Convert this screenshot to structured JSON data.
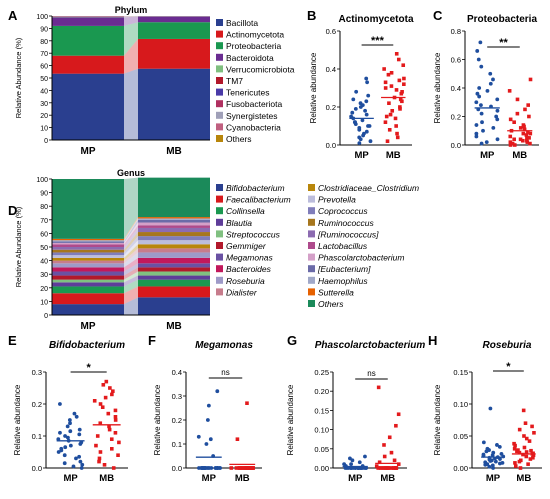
{
  "colors": {
    "mp": "#1f4e9e",
    "mb": "#e31a1c"
  },
  "chart_data": [
    {
      "panel": "A",
      "type": "stacked-bar",
      "title": "Phylum",
      "ylabel": "Relative Abundance (%)",
      "ylim": [
        0,
        100
      ],
      "yticks": [
        0,
        10,
        20,
        30,
        40,
        50,
        60,
        70,
        80,
        90,
        100
      ],
      "categories": [
        "MP",
        "MB"
      ],
      "series": [
        {
          "name": "Bacillota",
          "color": "#2a3f8f",
          "values": [
            53.5,
            57.5
          ]
        },
        {
          "name": "Actinomycetota",
          "color": "#d7191c",
          "values": [
            14.5,
            24.0
          ]
        },
        {
          "name": "Proteobacteria",
          "color": "#1a9850",
          "values": [
            24.0,
            13.5
          ]
        },
        {
          "name": "Bacteroidota",
          "color": "#6a2c91",
          "values": [
            7.0,
            4.5
          ]
        },
        {
          "name": "Verrucomicrobiota",
          "color": "#7fbf7f",
          "values": [
            0.3,
            0.2
          ]
        },
        {
          "name": "TM7",
          "color": "#b2182b",
          "values": [
            0.2,
            0.1
          ]
        },
        {
          "name": "Tenericutes",
          "color": "#4a3aa8",
          "values": [
            0.2,
            0.1
          ]
        },
        {
          "name": "Fusobacteriota",
          "color": "#b03060",
          "values": [
            0.1,
            0.05
          ]
        },
        {
          "name": "Synergistetes",
          "color": "#a0a0b8",
          "values": [
            0.1,
            0.05
          ]
        },
        {
          "name": "Cyanobacteria",
          "color": "#c06080",
          "values": [
            0.05,
            0.0
          ]
        },
        {
          "name": "Others",
          "color": "#b8860b",
          "values": [
            0.05,
            0.0
          ]
        }
      ]
    },
    {
      "panel": "B",
      "type": "scatter",
      "title": "Actinomycetota",
      "ylabel": "Relative abundance",
      "ylim": [
        0,
        0.6
      ],
      "yticks": [
        0.0,
        0.2,
        0.4,
        0.6
      ],
      "yticklabels": [
        "0.0",
        "0.2",
        "0.4",
        "0.6"
      ],
      "categories": [
        "MP",
        "MB"
      ],
      "significance": "***",
      "series": [
        {
          "name": "MP",
          "mean": 0.14,
          "values": [
            0.01,
            0.02,
            0.03,
            0.04,
            0.05,
            0.06,
            0.07,
            0.08,
            0.09,
            0.1,
            0.1,
            0.11,
            0.12,
            0.12,
            0.13,
            0.14,
            0.15,
            0.16,
            0.17,
            0.18,
            0.19,
            0.2,
            0.21,
            0.22,
            0.23,
            0.24,
            0.26,
            0.28,
            0.33,
            0.35
          ]
        },
        {
          "name": "MB",
          "mean": 0.25,
          "values": [
            0.02,
            0.04,
            0.06,
            0.08,
            0.1,
            0.12,
            0.14,
            0.15,
            0.16,
            0.18,
            0.19,
            0.2,
            0.22,
            0.23,
            0.24,
            0.25,
            0.27,
            0.28,
            0.29,
            0.3,
            0.31,
            0.32,
            0.33,
            0.34,
            0.35,
            0.37,
            0.38,
            0.4,
            0.42,
            0.45,
            0.48
          ]
        }
      ]
    },
    {
      "panel": "C",
      "type": "scatter",
      "title": "Proteobacteria",
      "ylabel": "Relative abundance",
      "ylim": [
        0,
        0.8
      ],
      "yticks": [
        0.0,
        0.2,
        0.4,
        0.6,
        0.8
      ],
      "yticklabels": [
        "0.0",
        "0.2",
        "0.4",
        "0.6",
        "0.8"
      ],
      "categories": [
        "MP",
        "MB"
      ],
      "significance": "**",
      "series": [
        {
          "name": "MP",
          "mean": 0.26,
          "values": [
            0.01,
            0.02,
            0.04,
            0.06,
            0.08,
            0.1,
            0.12,
            0.14,
            0.16,
            0.18,
            0.2,
            0.22,
            0.24,
            0.25,
            0.27,
            0.28,
            0.3,
            0.32,
            0.34,
            0.36,
            0.38,
            0.4,
            0.43,
            0.46,
            0.5,
            0.55,
            0.6,
            0.66,
            0.72
          ]
        },
        {
          "name": "MB",
          "mean": 0.1,
          "values": [
            0.0,
            0.0,
            0.01,
            0.01,
            0.02,
            0.02,
            0.03,
            0.03,
            0.04,
            0.04,
            0.05,
            0.05,
            0.06,
            0.07,
            0.08,
            0.08,
            0.09,
            0.1,
            0.11,
            0.12,
            0.13,
            0.14,
            0.16,
            0.18,
            0.2,
            0.22,
            0.25,
            0.28,
            0.32,
            0.38,
            0.46
          ]
        }
      ]
    },
    {
      "panel": "D",
      "type": "stacked-bar",
      "title": "Genus",
      "ylabel": "Relative Abundance (%)",
      "ylim": [
        0,
        100
      ],
      "yticks": [
        0,
        10,
        20,
        30,
        40,
        50,
        60,
        70,
        80,
        90,
        100
      ],
      "categories": [
        "MP",
        "MB"
      ],
      "series": [
        {
          "name": "Bifidobacterium",
          "color": "#2a3f8f",
          "values": [
            8,
            13
          ]
        },
        {
          "name": "Faecalibacterium",
          "color": "#d7191c",
          "values": [
            8,
            8
          ]
        },
        {
          "name": "Collinsella",
          "color": "#1a9850",
          "values": [
            5,
            5
          ]
        },
        {
          "name": "Blautia",
          "color": "#5e3c99",
          "values": [
            3,
            3
          ]
        },
        {
          "name": "Streptococcus",
          "color": "#80c080",
          "values": [
            2,
            3
          ]
        },
        {
          "name": "Gemmiger",
          "color": "#b2182b",
          "values": [
            3,
            3
          ]
        },
        {
          "name": "Megamonas",
          "color": "#6a51a3",
          "values": [
            3,
            3
          ]
        },
        {
          "name": "Bacteroides",
          "color": "#c2185b",
          "values": [
            3,
            4
          ]
        },
        {
          "name": "Roseburia",
          "color": "#9e9ac8",
          "values": [
            3,
            4
          ]
        },
        {
          "name": "Dialister",
          "color": "#c77c8c",
          "values": [
            2,
            3
          ]
        },
        {
          "name": "Clostridiaceae_Clostridium",
          "color": "#b8860b",
          "values": [
            2,
            3
          ]
        },
        {
          "name": "Prevotella",
          "color": "#bcbddc",
          "values": [
            2,
            3
          ]
        },
        {
          "name": "Coprococcus",
          "color": "#807dba",
          "values": [
            2,
            3
          ]
        },
        {
          "name": "Ruminococcus",
          "color": "#a6761d",
          "values": [
            2,
            3
          ]
        },
        {
          "name": "[Ruminococcus]",
          "color": "#8c6bb1",
          "values": [
            2,
            3
          ]
        },
        {
          "name": "Lactobacillus",
          "color": "#ae4a8c",
          "values": [
            2,
            2
          ]
        },
        {
          "name": "Phascolarctobacterium",
          "color": "#d4a0c8",
          "values": [
            1,
            2
          ]
        },
        {
          "name": "[Eubacterium]",
          "color": "#6b6ba8",
          "values": [
            1,
            2
          ]
        },
        {
          "name": "Haemophilus",
          "color": "#a0a8c8",
          "values": [
            1,
            1
          ]
        },
        {
          "name": "Sutterella",
          "color": "#e66101",
          "values": [
            1,
            1
          ]
        },
        {
          "name": "Others",
          "color": "#1b8a5a",
          "values": [
            44,
            29
          ]
        }
      ]
    },
    {
      "panel": "E",
      "type": "scatter",
      "title": "Bifidobacterium",
      "ylabel": "Relative abundance",
      "ylim": [
        0,
        0.3
      ],
      "yticks": [
        0.0,
        0.1,
        0.2,
        0.3
      ],
      "yticklabels": [
        "0.0",
        "0.1",
        "0.2",
        "0.3"
      ],
      "categories": [
        "MP",
        "MB"
      ],
      "significance": "*",
      "series": [
        {
          "name": "MP",
          "mean": 0.085,
          "values": [
            0.0,
            0.005,
            0.01,
            0.015,
            0.02,
            0.03,
            0.035,
            0.04,
            0.05,
            0.055,
            0.06,
            0.065,
            0.07,
            0.075,
            0.08,
            0.085,
            0.09,
            0.095,
            0.1,
            0.105,
            0.11,
            0.115,
            0.12,
            0.13,
            0.14,
            0.15,
            0.16,
            0.17,
            0.2
          ]
        },
        {
          "name": "MB",
          "mean": 0.135,
          "values": [
            0.0,
            0.01,
            0.02,
            0.03,
            0.04,
            0.05,
            0.06,
            0.07,
            0.08,
            0.09,
            0.1,
            0.11,
            0.12,
            0.13,
            0.14,
            0.15,
            0.16,
            0.17,
            0.18,
            0.19,
            0.2,
            0.21,
            0.22,
            0.23,
            0.24,
            0.25,
            0.26,
            0.27
          ]
        }
      ]
    },
    {
      "panel": "F",
      "type": "scatter",
      "title": "Megamonas",
      "ylabel": "Relative abundance",
      "ylim": [
        0,
        0.4
      ],
      "yticks": [
        0.0,
        0.1,
        0.2,
        0.3,
        0.4
      ],
      "yticklabels": [
        "0.0",
        "0.1",
        "0.2",
        "0.3",
        "0.4"
      ],
      "categories": [
        "MP",
        "MB"
      ],
      "significance": "ns",
      "series": [
        {
          "name": "MP",
          "mean": 0.045,
          "values": [
            0.0,
            0.0,
            0.0,
            0.0,
            0.0,
            0.0,
            0.0,
            0.0,
            0.0,
            0.0,
            0.0,
            0.0,
            0.0,
            0.0,
            0.0,
            0.0,
            0.0,
            0.0,
            0.0,
            0.0,
            0.0,
            0.0,
            0.0,
            0.05,
            0.1,
            0.12,
            0.13,
            0.2,
            0.26,
            0.32
          ]
        },
        {
          "name": "MB",
          "mean": 0.015,
          "values": [
            0.0,
            0.0,
            0.0,
            0.0,
            0.0,
            0.0,
            0.0,
            0.0,
            0.0,
            0.0,
            0.0,
            0.0,
            0.0,
            0.0,
            0.0,
            0.0,
            0.0,
            0.0,
            0.0,
            0.0,
            0.0,
            0.0,
            0.0,
            0.0,
            0.0,
            0.0,
            0.0,
            0.12,
            0.27
          ]
        }
      ]
    },
    {
      "panel": "G",
      "type": "scatter",
      "title": "Phascolarctobacterium",
      "ylabel": "Relative abundance",
      "ylim": [
        0,
        0.25
      ],
      "yticks": [
        0.0,
        0.05,
        0.1,
        0.15,
        0.2,
        0.25
      ],
      "yticklabels": [
        "0.00",
        "0.05",
        "0.10",
        "0.15",
        "0.20",
        "0.25"
      ],
      "categories": [
        "MP",
        "MB"
      ],
      "significance": "ns",
      "series": [
        {
          "name": "MP",
          "mean": 0.004,
          "values": [
            0.0,
            0.0,
            0.0,
            0.0,
            0.0,
            0.0,
            0.0,
            0.0,
            0.0,
            0.0,
            0.0,
            0.0,
            0.0,
            0.0,
            0.0,
            0.0,
            0.0,
            0.0,
            0.0,
            0.0,
            0.0,
            0.005,
            0.005,
            0.01,
            0.01,
            0.015,
            0.02,
            0.025,
            0.03
          ]
        },
        {
          "name": "MB",
          "mean": 0.012,
          "values": [
            0.0,
            0.0,
            0.0,
            0.0,
            0.0,
            0.0,
            0.0,
            0.0,
            0.0,
            0.0,
            0.0,
            0.0,
            0.0,
            0.0,
            0.0,
            0.0,
            0.0,
            0.005,
            0.01,
            0.015,
            0.02,
            0.03,
            0.04,
            0.06,
            0.08,
            0.11,
            0.14,
            0.21
          ]
        }
      ]
    },
    {
      "panel": "H",
      "type": "scatter",
      "title": "Roseburia",
      "ylabel": "Relative abundance",
      "ylim": [
        0,
        0.15
      ],
      "yticks": [
        0.0,
        0.05,
        0.1,
        0.15
      ],
      "yticklabels": [
        "0.00",
        "0.05",
        "0.10",
        "0.15"
      ],
      "categories": [
        "MP",
        "MB"
      ],
      "significance": "*",
      "series": [
        {
          "name": "MP",
          "mean": 0.017,
          "values": [
            0.0,
            0.002,
            0.004,
            0.005,
            0.006,
            0.007,
            0.008,
            0.009,
            0.01,
            0.011,
            0.012,
            0.013,
            0.014,
            0.015,
            0.016,
            0.017,
            0.018,
            0.019,
            0.02,
            0.021,
            0.022,
            0.024,
            0.026,
            0.028,
            0.03,
            0.033,
            0.036,
            0.04,
            0.093
          ]
        },
        {
          "name": "MB",
          "mean": 0.022,
          "values": [
            0.0,
            0.003,
            0.006,
            0.008,
            0.01,
            0.012,
            0.014,
            0.016,
            0.018,
            0.02,
            0.021,
            0.022,
            0.023,
            0.024,
            0.025,
            0.026,
            0.027,
            0.028,
            0.03,
            0.032,
            0.035,
            0.038,
            0.042,
            0.046,
            0.05,
            0.055,
            0.06,
            0.065,
            0.07,
            0.09
          ]
        }
      ]
    }
  ],
  "panel_labels": [
    "A",
    "B",
    "C",
    "D",
    "E",
    "F",
    "G",
    "H"
  ]
}
